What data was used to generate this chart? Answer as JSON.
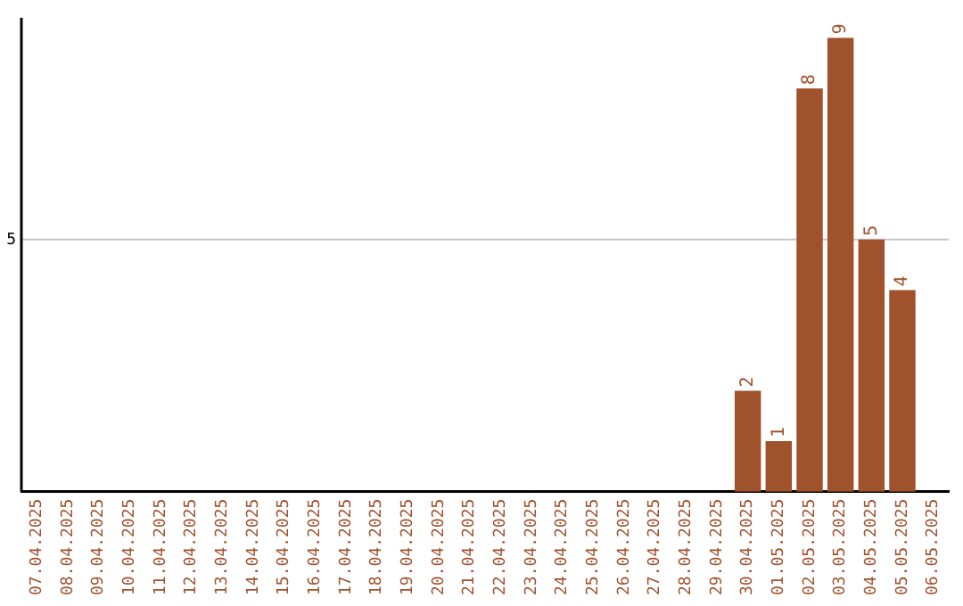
{
  "chart_data": {
    "type": "bar",
    "categories": [
      "07.04.2025",
      "08.04.2025",
      "09.04.2025",
      "10.04.2025",
      "11.04.2025",
      "12.04.2025",
      "13.04.2025",
      "14.04.2025",
      "15.04.2025",
      "16.04.2025",
      "17.04.2025",
      "18.04.2025",
      "19.04.2025",
      "20.04.2025",
      "21.04.2025",
      "22.04.2025",
      "23.04.2025",
      "24.04.2025",
      "25.04.2025",
      "26.04.2025",
      "27.04.2025",
      "28.04.2025",
      "29.04.2025",
      "30.04.2025",
      "01.05.2025",
      "02.05.2025",
      "03.05.2025",
      "04.05.2025",
      "05.05.2025",
      "06.05.2025"
    ],
    "values": [
      null,
      null,
      null,
      null,
      null,
      null,
      null,
      null,
      null,
      null,
      null,
      null,
      null,
      null,
      null,
      null,
      null,
      null,
      null,
      null,
      null,
      null,
      null,
      2,
      1,
      8,
      9,
      5,
      4,
      null
    ],
    "ylim": [
      0,
      9.4
    ],
    "ref_lines": [
      {
        "axis": "y",
        "value": 5,
        "label": "5",
        "color": "#c8c8c8"
      }
    ],
    "value_labels": [
      null,
      null,
      null,
      null,
      null,
      null,
      null,
      null,
      null,
      null,
      null,
      null,
      null,
      null,
      null,
      null,
      null,
      null,
      null,
      null,
      null,
      null,
      null,
      "2",
      "1",
      "8",
      "9",
      "5",
      "4",
      null
    ],
    "color": "#a0522d",
    "legend": false
  }
}
